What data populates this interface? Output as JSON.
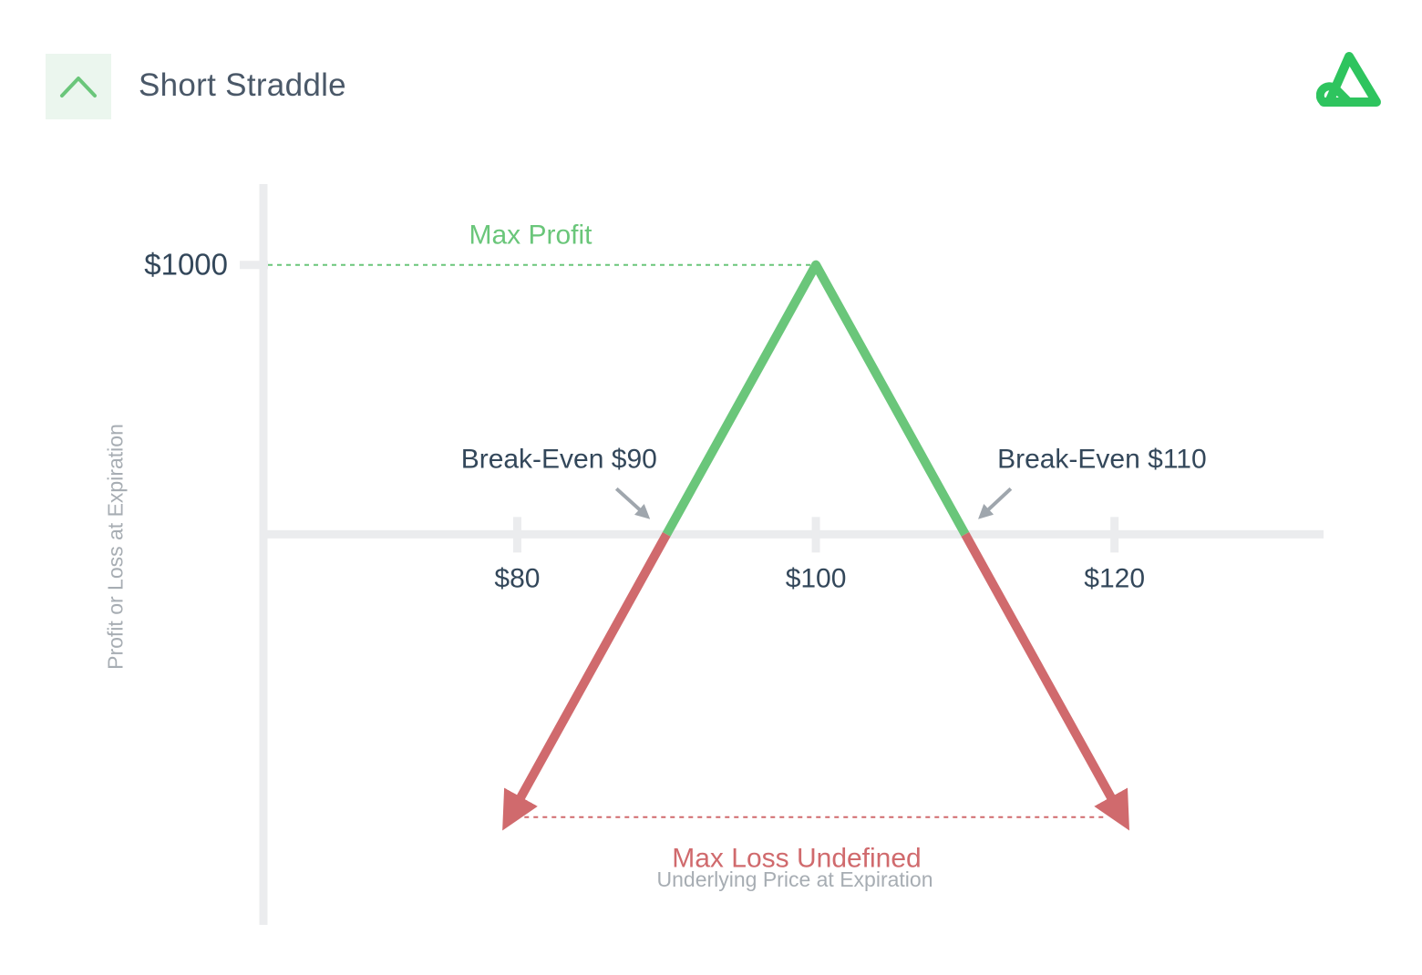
{
  "header": {
    "title": "Short Straddle",
    "icon": "chevron-up-icon",
    "logo": "brand-logo-icon"
  },
  "colors": {
    "profit": "#6ac67a",
    "loss": "#d06a6d",
    "axis": "#ebecee",
    "text": "#33475a",
    "muted": "#a7adb3",
    "arrow": "#9fa6ad"
  },
  "chart_data": {
    "type": "line",
    "title": "Short Straddle",
    "xlabel": "Underlying Price at Expiration",
    "ylabel": "Profit or Loss at Expiration",
    "x_ticks": [
      {
        "value": 80,
        "label": "$80"
      },
      {
        "value": 100,
        "label": "$100"
      },
      {
        "value": 120,
        "label": "$120"
      }
    ],
    "y_ticks": [
      {
        "value": 1000,
        "label": "$1000"
      }
    ],
    "xlim": [
      63,
      134
    ],
    "ylim": [
      -1450,
      1300
    ],
    "series": [
      {
        "x": [
          79.5,
          90,
          100,
          110,
          120.5
        ],
        "y": [
          -1050,
          0,
          1000,
          0,
          -1050
        ]
      }
    ],
    "annotations": [
      {
        "id": "max-profit",
        "text": "Max Profit",
        "x": 100,
        "y": 1000
      },
      {
        "id": "break-even-low",
        "text": "Break-Even $90",
        "x": 90,
        "y": 0
      },
      {
        "id": "break-even-high",
        "text": "Break-Even $110",
        "x": 110,
        "y": 0
      },
      {
        "id": "max-loss",
        "text": "Max Loss Undefined"
      }
    ]
  }
}
